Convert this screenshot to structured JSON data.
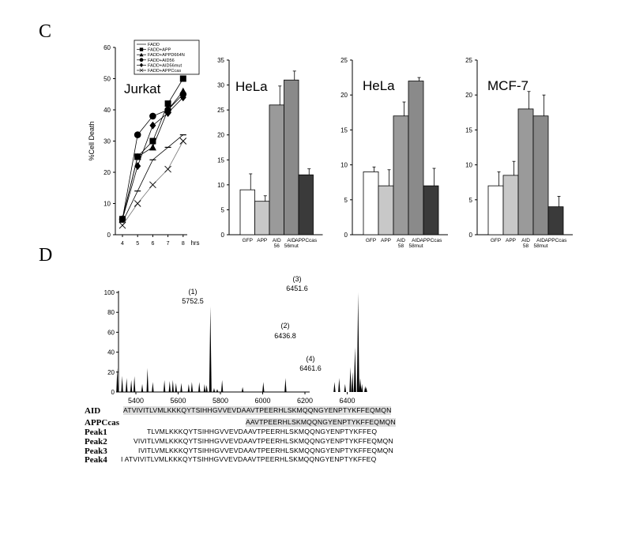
{
  "panel_c_label": "C",
  "panel_d_label": "D",
  "chart_data": [
    {
      "type": "line",
      "title": "Jurkat",
      "ylabel": "%Cell Death",
      "xlabel": "hrs",
      "ylim": [
        0,
        60
      ],
      "yticks": [
        0,
        10,
        20,
        30,
        40,
        50,
        60
      ],
      "xticks": [
        4,
        5,
        6,
        7,
        8
      ],
      "legend_position": "top-right",
      "series": [
        {
          "name": "FADD",
          "marker": "dash",
          "x": [
            4,
            5,
            6,
            7,
            8
          ],
          "y": [
            4,
            14,
            24,
            28,
            32
          ]
        },
        {
          "name": "FADD+APP",
          "marker": "square",
          "x": [
            4,
            5,
            6,
            7,
            8
          ],
          "y": [
            5,
            25,
            30,
            42,
            50
          ]
        },
        {
          "name": "FADD+APPD664N",
          "marker": "triangle",
          "x": [
            4,
            5,
            6,
            7,
            8
          ],
          "y": [
            5,
            25,
            28,
            40,
            46
          ]
        },
        {
          "name": "FADD+AID56",
          "marker": "circle",
          "x": [
            4,
            5,
            6,
            7,
            8
          ],
          "y": [
            5,
            32,
            38,
            40,
            45
          ]
        },
        {
          "name": "FADD+AID56mut",
          "marker": "diamond",
          "x": [
            4,
            5,
            6,
            7,
            8
          ],
          "y": [
            5,
            22,
            35,
            39,
            44
          ]
        },
        {
          "name": "FADD+APPCcas",
          "marker": "x",
          "x": [
            4,
            5,
            6,
            7,
            8
          ],
          "y": [
            3,
            10,
            16,
            21,
            30
          ]
        }
      ]
    },
    {
      "type": "bar",
      "title": "HeLa",
      "ylim": [
        0,
        35
      ],
      "yticks": [
        0,
        5,
        10,
        15,
        20,
        25,
        30,
        35
      ],
      "categories": [
        "GFP",
        "APP",
        "AID 56",
        "AID 56mut",
        "APPCcas"
      ],
      "values": [
        9,
        6.7,
        26,
        31,
        12
      ],
      "errors": [
        3.2,
        1.1,
        3.8,
        1.8,
        1.2
      ],
      "colors": [
        "#ffffff",
        "#c8c8c8",
        "#9a9a9a",
        "#8a8a8a",
        "#3a3a3a"
      ]
    },
    {
      "type": "bar",
      "title": "HeLa",
      "ylim": [
        0,
        25
      ],
      "yticks": [
        0,
        5,
        10,
        15,
        20,
        25
      ],
      "categories": [
        "GFP",
        "APP",
        "AID 58",
        "AID 58mut",
        "APPCcas"
      ],
      "values": [
        9,
        7,
        17,
        22,
        7
      ],
      "errors": [
        0.7,
        2.3,
        2,
        0.5,
        2.5
      ],
      "colors": [
        "#ffffff",
        "#c8c8c8",
        "#9a9a9a",
        "#8a8a8a",
        "#3a3a3a"
      ]
    },
    {
      "type": "bar",
      "title": "MCF-7",
      "ylim": [
        0,
        25
      ],
      "yticks": [
        0,
        5,
        10,
        15,
        20,
        25
      ],
      "categories": [
        "GFP",
        "APP",
        "AID 58",
        "AID 58mut",
        "APPCcas"
      ],
      "values": [
        7,
        8.5,
        18,
        17,
        4
      ],
      "errors": [
        2,
        2,
        2.5,
        3,
        1.5
      ],
      "colors": [
        "#ffffff",
        "#c8c8c8",
        "#9a9a9a",
        "#8a8a8a",
        "#3a3a3a"
      ]
    },
    {
      "type": "spectrum",
      "ylim": [
        0,
        100
      ],
      "yticks": [
        0,
        20,
        40,
        60,
        80,
        100
      ],
      "xlim": [
        5300,
        6500
      ],
      "xticks": [
        5400,
        5600,
        5800,
        6000,
        6200,
        6400
      ],
      "peaks": [
        {
          "x": 5752.5,
          "y": 86,
          "label": "(1)",
          "mass": "5752.5"
        },
        {
          "x": 6436.8,
          "y": 45,
          "label": "(2)",
          "mass": "6436.8"
        },
        {
          "x": 6451.6,
          "y": 100,
          "label": "(3)",
          "mass": "6451.6"
        },
        {
          "x": 6461.6,
          "y": 14,
          "label": "(4)",
          "mass": "6461.6"
        }
      ],
      "noise": [
        [
          5312,
          24
        ],
        [
          5335,
          16
        ],
        [
          5356,
          14
        ],
        [
          5378,
          12
        ],
        [
          5393,
          16
        ],
        [
          5430,
          8
        ],
        [
          5455,
          24
        ],
        [
          5480,
          10
        ],
        [
          5535,
          12
        ],
        [
          5560,
          11
        ],
        [
          5575,
          12
        ],
        [
          5590,
          9
        ],
        [
          5615,
          9
        ],
        [
          5650,
          8
        ],
        [
          5665,
          10
        ],
        [
          5700,
          10
        ],
        [
          5725,
          8
        ],
        [
          5735,
          7
        ],
        [
          5770,
          4
        ],
        [
          5785,
          3
        ],
        [
          5808,
          12
        ],
        [
          5905,
          5
        ],
        [
          6003,
          10
        ],
        [
          6108,
          14
        ],
        [
          6340,
          10
        ],
        [
          6362,
          14
        ],
        [
          6390,
          8
        ],
        [
          6415,
          25
        ],
        [
          6425,
          20
        ],
        [
          6470,
          8
        ],
        [
          6485,
          6
        ],
        [
          6490,
          5
        ]
      ]
    }
  ],
  "sequences": [
    {
      "label": "AID",
      "text": "ATVIVITLVMLKKKQYTSIHHGVVEVDAAVTPEERHLSKMQQNGYENPTYKFFEQMQN",
      "highlight": true
    },
    {
      "label": "APPCcas",
      "text": "AAVTPEERHLSKMQQNGYENPTYKFFEQMQN",
      "highlight": true
    },
    {
      "label": "Peak1",
      "text": "TLVMLKKKQYTSIHHGVVEVDAAVTPEERHLSKMQQNGYENPTYKFFEQ",
      "highlight": false
    },
    {
      "label": "Peak2",
      "text": "VIVITLVMLKKKQYTSIHHGVVEVDAAVTPEERHLSKMQQNGYENPTYKFFEQMQN",
      "highlight": false
    },
    {
      "label": "Peak3",
      "text": "IVITLVMLKKKQYTSIHHGVVEVDAAVTPEERHLSKMQQNGYENPTYKFFEQMQN",
      "highlight": false
    },
    {
      "label": "Peak4",
      "text": "I ATVIVITLVMLKKKQYTSIHHGVVEVDAAVTPEERHLSKMQQNGYENPTYKFFEQ",
      "highlight": false
    }
  ]
}
